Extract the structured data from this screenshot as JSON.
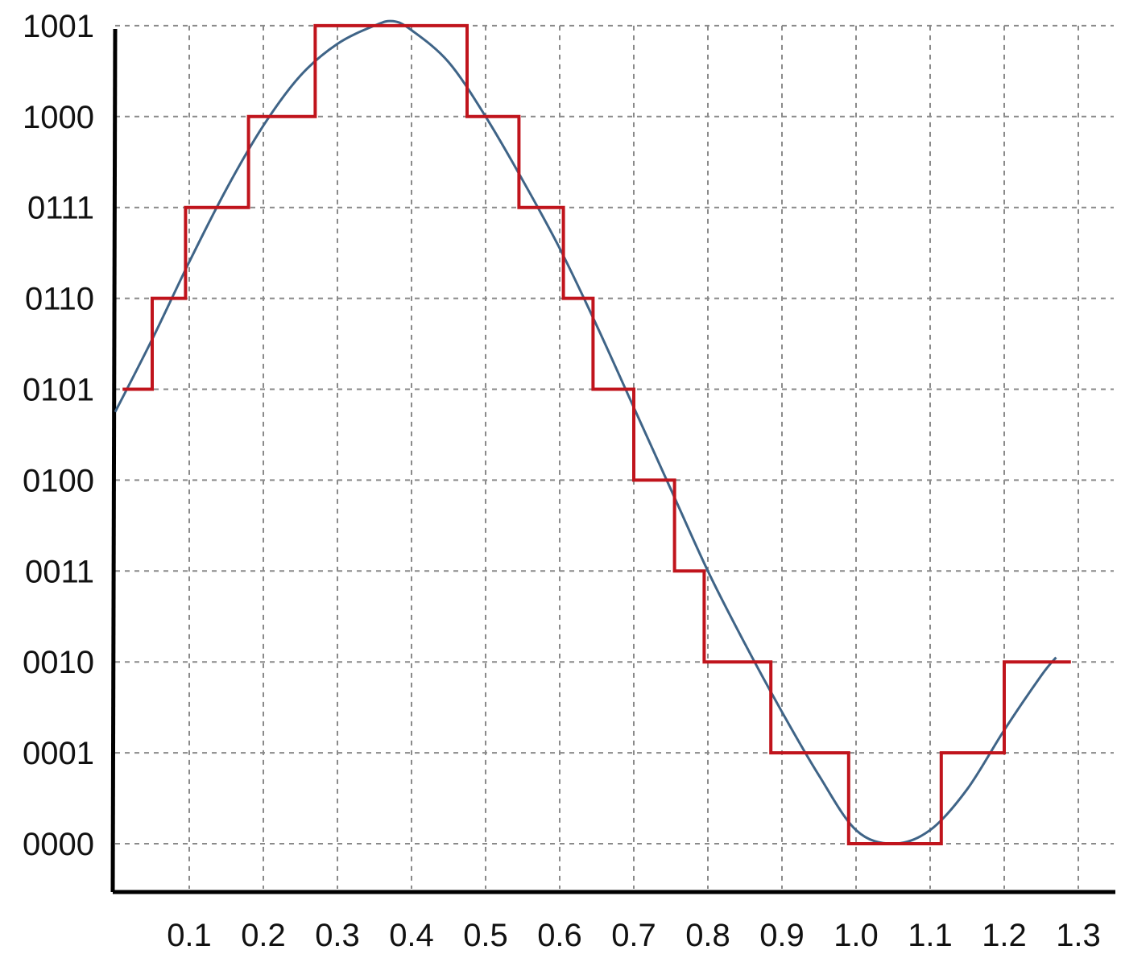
{
  "chart_data": {
    "type": "line",
    "title": "",
    "xlabel": "",
    "ylabel": "",
    "xlim": [
      0,
      1.3
    ],
    "ylim": [
      0,
      9
    ],
    "grid": true,
    "x_ticks": [
      "0.1",
      "0.2",
      "0.3",
      "0.4",
      "0.5",
      "0.6",
      "0.7",
      "0.8",
      "0.9",
      "1.0",
      "1.1",
      "1.2",
      "1.3"
    ],
    "y_ticks": [
      "0000",
      "0001",
      "0010",
      "0011",
      "0100",
      "0101",
      "0110",
      "0111",
      "1000",
      "1001"
    ],
    "series": [
      {
        "kind": "analog-signal",
        "color": "#3f6487",
        "x": [
          0.0,
          0.05,
          0.1,
          0.15,
          0.2,
          0.25,
          0.3,
          0.35,
          0.375,
          0.4,
          0.45,
          0.5,
          0.55,
          0.6,
          0.65,
          0.7,
          0.75,
          0.8,
          0.85,
          0.9,
          0.95,
          1.0,
          1.05,
          1.1,
          1.15,
          1.2,
          1.25,
          1.27
        ],
        "y": [
          4.75,
          5.55,
          6.4,
          7.2,
          7.9,
          8.45,
          8.8,
          9.0,
          9.05,
          8.95,
          8.6,
          8.0,
          7.3,
          6.55,
          5.7,
          4.8,
          3.9,
          3.0,
          2.2,
          1.45,
          0.75,
          0.15,
          0.0,
          0.15,
          0.6,
          1.25,
          1.85,
          2.05
        ]
      },
      {
        "kind": "quantized-output",
        "color": "#c0141c",
        "steps": [
          {
            "x0": 0.01,
            "x1": 0.05,
            "level": 5
          },
          {
            "x0": 0.05,
            "x1": 0.095,
            "level": 6
          },
          {
            "x0": 0.095,
            "x1": 0.18,
            "level": 7
          },
          {
            "x0": 0.18,
            "x1": 0.27,
            "level": 8
          },
          {
            "x0": 0.27,
            "x1": 0.475,
            "level": 9
          },
          {
            "x0": 0.475,
            "x1": 0.545,
            "level": 8
          },
          {
            "x0": 0.545,
            "x1": 0.605,
            "level": 7
          },
          {
            "x0": 0.605,
            "x1": 0.645,
            "level": 6
          },
          {
            "x0": 0.645,
            "x1": 0.7,
            "level": 5
          },
          {
            "x0": 0.7,
            "x1": 0.755,
            "level": 4
          },
          {
            "x0": 0.755,
            "x1": 0.795,
            "level": 3
          },
          {
            "x0": 0.795,
            "x1": 0.885,
            "level": 2
          },
          {
            "x0": 0.885,
            "x1": 0.99,
            "level": 1
          },
          {
            "x0": 0.99,
            "x1": 1.115,
            "level": 0
          },
          {
            "x0": 1.115,
            "x1": 1.2,
            "level": 1
          },
          {
            "x0": 1.2,
            "x1": 1.29,
            "level": 2
          }
        ]
      }
    ]
  }
}
